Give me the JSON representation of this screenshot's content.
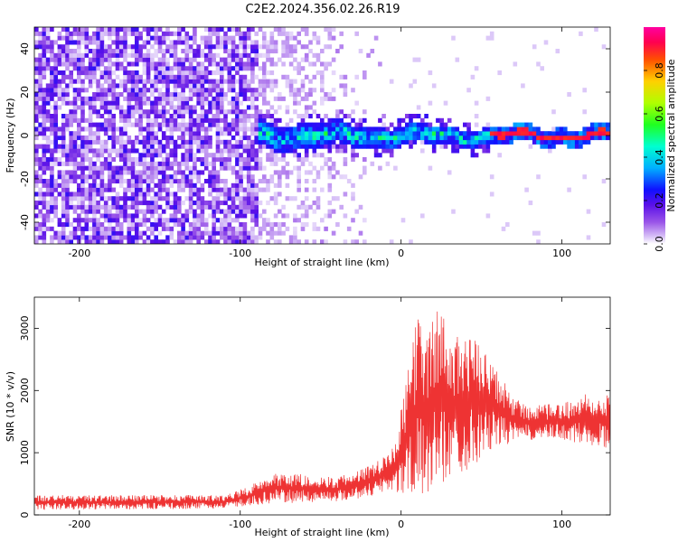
{
  "chart_data": [
    {
      "type": "heatmap",
      "title": "C2E2.2024.356.02.26.R19",
      "xlabel": "Height of straight line (km)",
      "ylabel": "Frequency (Hz)",
      "xlim": [
        -228,
        130
      ],
      "ylim": [
        -50,
        50
      ],
      "xticks": [
        -200,
        -100,
        0,
        100
      ],
      "yticks": [
        -40,
        -20,
        0,
        20,
        40
      ],
      "colorbar": {
        "label": "Normalized spectral amplitude",
        "range": [
          0,
          1
        ],
        "ticks": [
          0.0,
          0.2,
          0.4,
          0.6,
          0.8
        ],
        "tick_labels": [
          "0.0",
          "0.2",
          "0.4",
          "0.6",
          "0.8"
        ]
      },
      "description_regions": [
        {
          "x_range": [
            -228,
            -90
          ],
          "content": "broadband noise across all frequencies, amplitude ~0.1-0.2"
        },
        {
          "x_range": [
            -90,
            55
          ],
          "content": "signal band near 0 Hz, width ~±5 Hz, amplitude 0.2-0.6"
        },
        {
          "x_range": [
            55,
            130
          ],
          "content": "narrow line at ~0 Hz, amplitude ~0.9"
        }
      ]
    },
    {
      "type": "line",
      "xlabel": "Height of straight line (km)",
      "ylabel": "SNR (10 * v/v)",
      "xlim": [
        -228,
        130
      ],
      "ylim": [
        0,
        3500
      ],
      "xticks": [
        -200,
        -100,
        0,
        100
      ],
      "yticks": [
        0,
        1000,
        2000,
        3000
      ],
      "series": [
        {
          "name": "SNR",
          "color": "#ee3333",
          "envelope_x": [
            -228,
            -150,
            -110,
            -95,
            -80,
            -60,
            -40,
            -20,
            -5,
            0,
            5,
            10,
            15,
            20,
            25,
            30,
            40,
            50,
            55,
            60,
            70,
            80,
            100,
            120,
            130
          ],
          "envelope_low": [
            80,
            90,
            100,
            150,
            180,
            200,
            220,
            280,
            400,
            300,
            250,
            200,
            300,
            400,
            500,
            600,
            700,
            900,
            1000,
            1100,
            1150,
            1200,
            1200,
            1100,
            1050
          ],
          "envelope_high": [
            320,
            320,
            320,
            450,
            700,
            650,
            600,
            800,
            1100,
            1700,
            2400,
            3300,
            3000,
            3200,
            3400,
            2800,
            3000,
            2700,
            2500,
            2300,
            1900,
            1750,
            1800,
            2000,
            2000
          ]
        }
      ]
    }
  ]
}
